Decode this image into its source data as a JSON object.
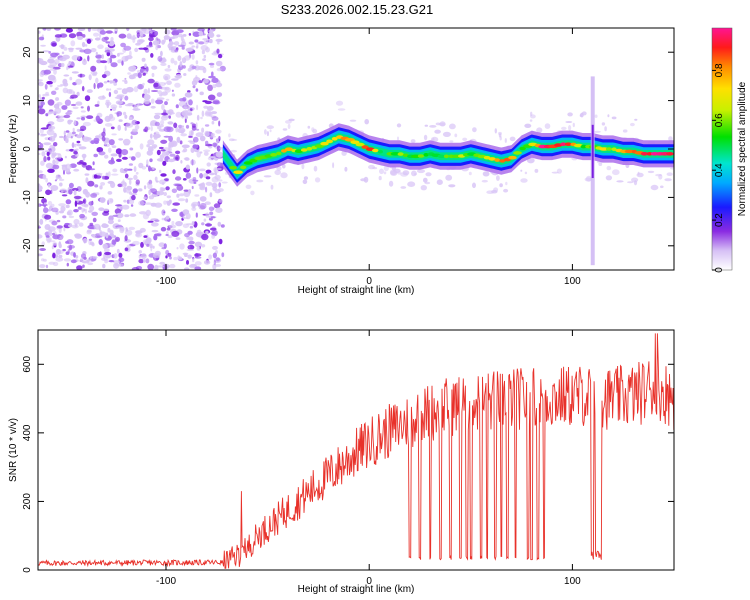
{
  "title": "S233.2026.002.15.23.G21",
  "chart_data": [
    {
      "type": "heatmap",
      "xlabel": "Height of straight line (km)",
      "ylabel": "Frequency (Hz)",
      "xlim": [
        -163,
        150
      ],
      "ylim": [
        -25,
        25
      ],
      "xticks": [
        -100,
        0,
        100
      ],
      "yticks": [
        -20,
        -10,
        0,
        10,
        20
      ],
      "colorbar": {
        "label": "Normalized spectral amplitude",
        "range": [
          0,
          0.97
        ],
        "ticks": [
          0,
          0.2,
          0.4,
          0.6,
          0.8
        ]
      },
      "noise_region_x": [
        -163,
        -72
      ],
      "ridge": {
        "x": [
          -72,
          -65,
          -60,
          -55,
          -50,
          -45,
          -40,
          -35,
          -30,
          -25,
          -20,
          -15,
          -10,
          -5,
          0,
          5,
          10,
          15,
          20,
          25,
          30,
          35,
          40,
          45,
          50,
          55,
          60,
          65,
          70,
          75,
          80,
          85,
          90,
          95,
          100,
          105,
          110,
          115,
          120,
          125,
          130,
          135,
          140,
          145,
          150
        ],
        "freq": [
          -1,
          -5,
          -3,
          -2,
          -1.5,
          -1,
          0,
          -0.5,
          0,
          0.5,
          1.5,
          2.5,
          2,
          1,
          0,
          -0.5,
          -1,
          -1,
          -1.5,
          -1.5,
          -1,
          -1.5,
          -1.5,
          -1.5,
          -1,
          -1.5,
          -2,
          -2.5,
          -2,
          0,
          1,
          0.5,
          0.5,
          1,
          1,
          0.5,
          0.5,
          0,
          0,
          -0.5,
          -0.5,
          -1,
          -1,
          -1,
          -1
        ],
        "amp": [
          0.3,
          0.75,
          0.55,
          0.6,
          0.55,
          0.6,
          0.85,
          0.6,
          0.7,
          0.65,
          0.7,
          0.75,
          0.85,
          0.65,
          0.95,
          0.5,
          0.55,
          0.6,
          0.55,
          0.6,
          0.5,
          0.55,
          0.6,
          0.65,
          0.55,
          0.6,
          0.75,
          0.85,
          0.8,
          0.5,
          0.7,
          0.95,
          0.9,
          0.97,
          0.9,
          0.5,
          0.6,
          0.7,
          0.65,
          0.8,
          0.85,
          0.9,
          0.95,
          0.97,
          0.9
        ]
      },
      "spike_x": 110
    },
    {
      "type": "line",
      "xlabel": "Height of straight line (km)",
      "ylabel": "SNR (10 * v/v)",
      "xlim": [
        -163,
        150
      ],
      "ylim": [
        0,
        700
      ],
      "xticks": [
        -100,
        0,
        100
      ],
      "yticks": [
        0,
        200,
        400,
        600
      ],
      "color": "#e8312a",
      "profile": {
        "x": [
          -163,
          -72,
          -62,
          -55,
          -45,
          -35,
          -25,
          -15,
          -5,
          5,
          15,
          25,
          35,
          45,
          55,
          65,
          75,
          85,
          95,
          105,
          115,
          125,
          135,
          140,
          145,
          150
        ],
        "snr": [
          20,
          22,
          50,
          100,
          150,
          200,
          250,
          300,
          350,
          390,
          420,
          450,
          470,
          485,
          490,
          495,
          500,
          500,
          505,
          510,
          500,
          505,
          520,
          540,
          520,
          500
        ]
      },
      "dropouts_x": [
        20,
        25,
        30,
        35,
        40,
        45,
        48,
        50,
        55,
        58,
        62,
        65,
        68,
        72,
        78,
        80,
        83,
        86,
        110,
        112,
        114
      ]
    }
  ]
}
